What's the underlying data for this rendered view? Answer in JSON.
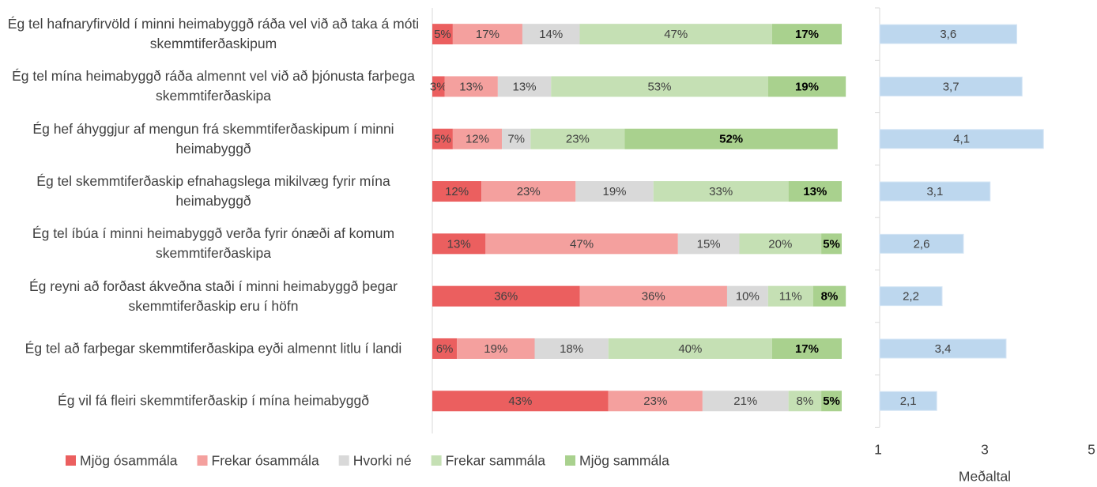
{
  "chart_data": [
    {
      "type": "stacked-bar-horizontal",
      "categories": [
        "Ég tel hafnaryfirvöld í minni heimabyggð ráða vel við að taka á móti skemmtiferðaskipum",
        "Ég tel mína heimabyggð ráða almennt vel við að þjónusta farþega skemmtiferðaskipa",
        "Ég hef áhyggjur af mengun frá skemmtiferðaskipum í minni heimabyggð",
        "Ég tel skemmtiferðaskip efnahagslega mikilvæg fyrir mína heimabyggð",
        "Ég tel íbúa í minni heimabyggð verða fyrir ónæði af komum skemmtiferðaskipa",
        "Ég reyni að forðast ákveðna staði í minni heimabyggð þegar skemmtiferðaskip eru í höfn",
        "Ég tel að farþegar skemmtiferðaskipa eyði almennt litlu í landi",
        "Ég vil fá fleiri skemmtiferðaskip í mína heimabyggð"
      ],
      "xlim": [
        0,
        100
      ],
      "legend": "bottom",
      "series": [
        {
          "name": "Mjög ósammála",
          "color": "#eb5f5f",
          "values": [
            5,
            3,
            5,
            12,
            13,
            36,
            6,
            43
          ],
          "value_labels": [
            "5%",
            "3%",
            "5%",
            "12%",
            "13%",
            "36%",
            "6%",
            "43%"
          ]
        },
        {
          "name": "Frekar ósammála",
          "color": "#f4a09e",
          "values": [
            17,
            13,
            12,
            23,
            47,
            36,
            19,
            23
          ],
          "value_labels": [
            "17%",
            "13%",
            "12%",
            "23%",
            "47%",
            "36%",
            "19%",
            "23%"
          ]
        },
        {
          "name": "Hvorki né",
          "color": "#d9d9d9",
          "values": [
            14,
            13,
            7,
            19,
            15,
            10,
            18,
            21
          ],
          "value_labels": [
            "14%",
            "13%",
            "7%",
            "19%",
            "15%",
            "10%",
            "18%",
            "21%"
          ]
        },
        {
          "name": "Frekar sammála",
          "color": "#c5e0b4",
          "values": [
            47,
            53,
            23,
            33,
            20,
            11,
            40,
            8
          ],
          "value_labels": [
            "47%",
            "53%",
            "23%",
            "33%",
            "20%",
            "11%",
            "40%",
            "8%"
          ]
        },
        {
          "name": "Mjög sammála",
          "color": "#a9d18e",
          "values": [
            17,
            19,
            52,
            13,
            5,
            8,
            17,
            5
          ],
          "value_labels": [
            "17%",
            "19%",
            "52%",
            "13%",
            "5%",
            "8%",
            "17%",
            "5%"
          ]
        }
      ]
    },
    {
      "type": "bar-horizontal",
      "values": [
        3.6,
        3.7,
        4.1,
        3.1,
        2.6,
        2.2,
        3.4,
        2.1
      ],
      "value_labels": [
        "3,6",
        "3,7",
        "4,1",
        "3,1",
        "2,6",
        "2,2",
        "3,4",
        "2,1"
      ],
      "color": "#bdd7ee",
      "xlim": [
        1,
        5
      ],
      "xticks": [
        1,
        3,
        5
      ],
      "xlabel": "Meðaltal"
    }
  ]
}
